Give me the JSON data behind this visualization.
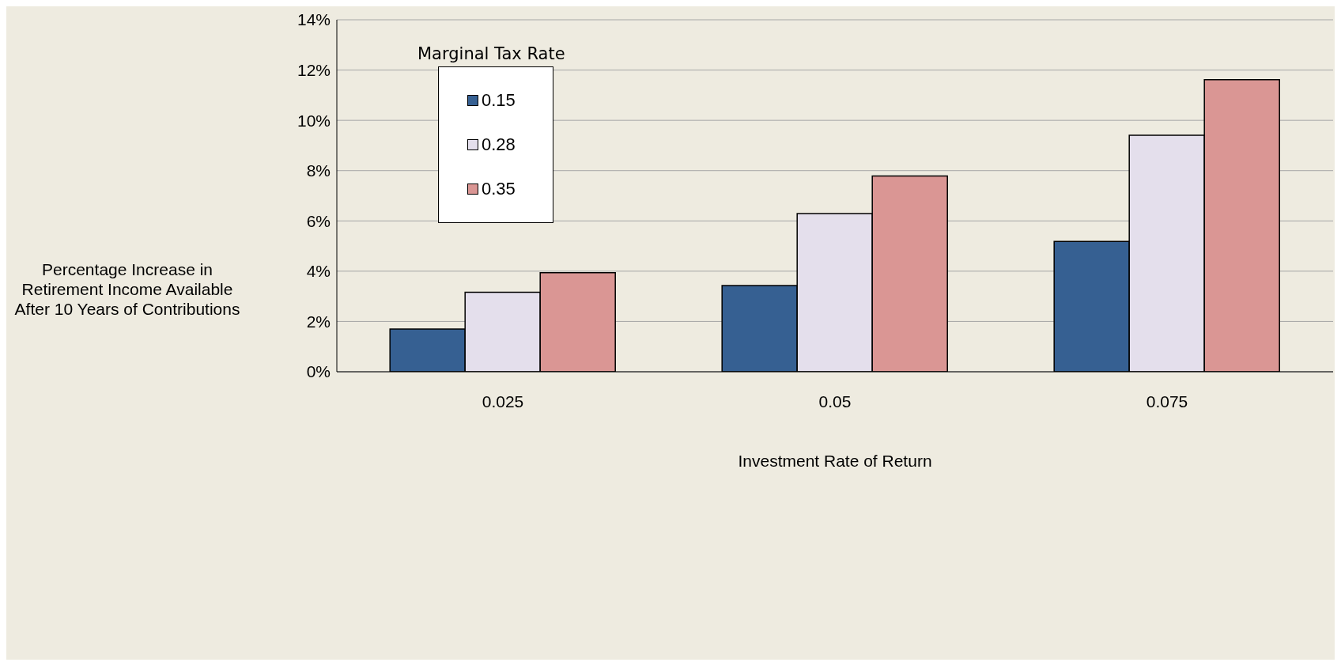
{
  "chart_data": {
    "type": "bar",
    "xlabel": "Investment Rate of Return",
    "ylabel": "Percentage Increase in Retirement Income Available After 10 Years of Contributions",
    "legend_title": "Marginal Tax Rate",
    "categories": [
      "0.025",
      "0.05",
      "0.075"
    ],
    "series": [
      {
        "name": "0.15",
        "color": "#366092",
        "values": [
          1.7,
          3.43,
          5.18
        ]
      },
      {
        "name": "0.28",
        "color": "#e4dfec",
        "values": [
          3.16,
          6.29,
          9.41
        ]
      },
      {
        "name": "0.35",
        "color": "#da9694",
        "values": [
          3.94,
          7.79,
          11.62
        ]
      }
    ],
    "ylim": [
      0,
      14
    ],
    "yticks": [
      {
        "value": 0,
        "label": "0%"
      },
      {
        "value": 2,
        "label": "2%"
      },
      {
        "value": 4,
        "label": "4%"
      },
      {
        "value": 6,
        "label": "6%"
      },
      {
        "value": 8,
        "label": "8%"
      },
      {
        "value": 10,
        "label": "10%"
      },
      {
        "value": 12,
        "label": "12%"
      },
      {
        "value": 14,
        "label": "14%"
      }
    ],
    "grid": "y",
    "legend": "top left"
  }
}
